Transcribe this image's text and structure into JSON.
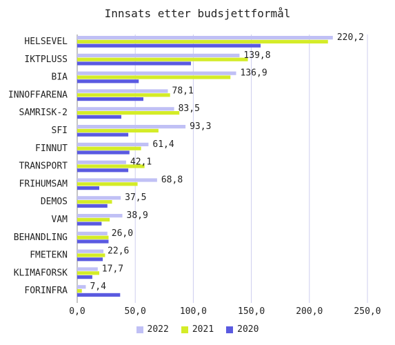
{
  "chart_data": {
    "type": "bar",
    "orientation": "horizontal",
    "title": "Innsats etter budsjettformål",
    "xlabel": "",
    "ylabel": "",
    "categories": [
      "HELSEVEL",
      "IKTPLUSS",
      "BIA",
      "INNOFFARENA",
      "SAMRISK-2",
      "SFI",
      "FINNUT",
      "TRANSPORT",
      "FRIHUMSAM",
      "DEMOS",
      "VAM",
      "BEHANDLING",
      "FMETEKN",
      "KLIMAFORSK",
      "FORINFRA"
    ],
    "series": [
      {
        "name": "2022",
        "color": "#c0c0f5",
        "values": [
          220.2,
          139.8,
          136.9,
          78.1,
          83.5,
          93.3,
          61.4,
          42.1,
          68.8,
          37.5,
          38.9,
          26.0,
          22.6,
          17.7,
          7.4
        ]
      },
      {
        "name": "2021",
        "color": "#d4ec28",
        "values": [
          216,
          147,
          132,
          80,
          88,
          70,
          55,
          58,
          52,
          30,
          28,
          27,
          24,
          19,
          4
        ]
      },
      {
        "name": "2020",
        "color": "#5a5ae0",
        "values": [
          158,
          98,
          53,
          57,
          38,
          44,
          45,
          44,
          19,
          26,
          21,
          27,
          22,
          13,
          37
        ]
      }
    ],
    "data_labels": [
      "220,2",
      "139,8",
      "136,9",
      "78,1",
      "83,5",
      "93,3",
      "61,4",
      "42,1",
      "68,8",
      "37,5",
      "38,9",
      "26,0",
      "22,6",
      "17,7",
      "7,4"
    ],
    "xlim": [
      0,
      250
    ],
    "xticks": [
      "0,0",
      "50,0",
      "100,0",
      "150,0",
      "200,0",
      "250,0"
    ],
    "xtick_values": [
      0,
      50,
      100,
      150,
      200,
      250
    ],
    "grid": "vertical",
    "legend_position": "bottom"
  }
}
